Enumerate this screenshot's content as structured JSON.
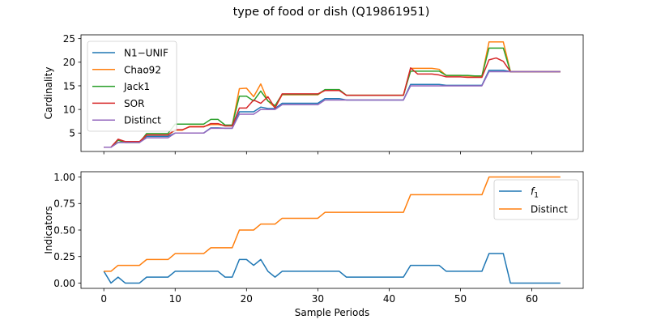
{
  "figure": {
    "title": "type of food or dish (Q19861951)"
  },
  "chart_data": [
    {
      "type": "line",
      "ylabel": "Cardinality",
      "xlabel": "",
      "xlim": [
        -3.2,
        67.2
      ],
      "ylim": [
        1.1,
        25.8
      ],
      "xticks": [
        0,
        10,
        20,
        30,
        40,
        50,
        60
      ],
      "yticks": [
        5,
        10,
        15,
        20,
        25
      ],
      "show_xtick_labels": false,
      "legend_position": "upper-left",
      "x": [
        0,
        1,
        2,
        3,
        4,
        5,
        6,
        7,
        8,
        9,
        10,
        11,
        12,
        13,
        14,
        15,
        16,
        17,
        18,
        19,
        20,
        21,
        22,
        23,
        24,
        25,
        26,
        27,
        28,
        29,
        30,
        31,
        32,
        33,
        34,
        35,
        36,
        37,
        38,
        39,
        40,
        41,
        42,
        43,
        44,
        45,
        46,
        47,
        48,
        49,
        50,
        51,
        52,
        53,
        54,
        55,
        56,
        57,
        58,
        59,
        60,
        61,
        62,
        63,
        64
      ],
      "series": [
        {
          "name": "N1−UNIF",
          "color": "#1f77b4",
          "values": [
            2,
            2,
            3,
            3,
            3,
            3,
            4.3,
            4.3,
            4.3,
            4.3,
            5,
            5,
            5,
            5,
            5,
            6.1,
            6.1,
            6,
            6,
            9.5,
            9.5,
            9.5,
            10.5,
            10.2,
            10.2,
            11.3,
            11.3,
            11.3,
            11.3,
            11.3,
            11.3,
            12.3,
            12.3,
            12.3,
            12,
            12,
            12,
            12,
            12,
            12,
            12,
            12,
            12,
            15.3,
            15.3,
            15.3,
            15.3,
            15.3,
            15.1,
            15.1,
            15.1,
            15.1,
            15.1,
            15.1,
            18.3,
            18.3,
            18.3,
            18,
            18,
            18,
            18,
            18,
            18,
            18,
            18
          ]
        },
        {
          "name": "Chao92",
          "color": "#ff7f0e",
          "values": [
            2,
            2,
            3.5,
            3,
            3,
            3,
            4.6,
            4.6,
            4.6,
            4.6,
            5.6,
            5.6,
            6.4,
            6.4,
            6.4,
            6.8,
            6.8,
            6.6,
            6.6,
            14.4,
            14.5,
            12.7,
            15.4,
            11.8,
            10.4,
            13.1,
            13.1,
            13.1,
            13.1,
            13.1,
            13.1,
            14.1,
            14.1,
            14.1,
            13,
            13,
            13,
            13,
            13,
            13,
            13,
            13,
            13,
            18.7,
            18.7,
            18.7,
            18.7,
            18.5,
            17.2,
            17.2,
            17.2,
            17.1,
            17,
            17,
            24.3,
            24.3,
            24.3,
            18,
            18,
            18,
            18,
            18,
            18,
            18,
            18
          ]
        },
        {
          "name": "Jack1",
          "color": "#2ca02c",
          "values": [
            2,
            2,
            3.5,
            3,
            3,
            3,
            4.9,
            4.9,
            4.9,
            4.9,
            6.9,
            6.9,
            6.9,
            6.9,
            6.9,
            7.9,
            7.9,
            6.7,
            6.7,
            12.8,
            12.8,
            11.8,
            13.9,
            11.8,
            10.8,
            13.2,
            13.2,
            13.2,
            13.2,
            13.2,
            13.2,
            14.2,
            14.2,
            14.2,
            13,
            13,
            13,
            13,
            13,
            13,
            13,
            13,
            13,
            18.1,
            18.1,
            18.1,
            18.1,
            18.1,
            17.2,
            17.2,
            17.2,
            17.2,
            17.1,
            17.1,
            23,
            23,
            23,
            18,
            18,
            18,
            18,
            18,
            18,
            18,
            18
          ]
        },
        {
          "name": "SOR",
          "color": "#d62728",
          "values": [
            2,
            2,
            3.7,
            3.2,
            3.2,
            3.2,
            4.6,
            4.6,
            4.6,
            4.6,
            5.7,
            5.7,
            6.3,
            6.3,
            6.3,
            7,
            7,
            6.5,
            6.5,
            10.3,
            10.3,
            12,
            11.3,
            12.7,
            10.3,
            13.3,
            13.3,
            13.3,
            13.3,
            13.3,
            13.3,
            14,
            14,
            14,
            13,
            13,
            13,
            13,
            13,
            13,
            13,
            13,
            13,
            18.8,
            17.5,
            17.5,
            17.5,
            17.3,
            16.9,
            16.9,
            16.9,
            16.8,
            16.8,
            16.8,
            20.5,
            20.9,
            20.2,
            18,
            18,
            18,
            18,
            18,
            18,
            18,
            18
          ]
        },
        {
          "name": "Distinct",
          "color": "#9467bd",
          "values": [
            2,
            2,
            3,
            3,
            3,
            3,
            4,
            4,
            4,
            4,
            5,
            5,
            5,
            5,
            5,
            6,
            6,
            6,
            6,
            9,
            9,
            9,
            10,
            10,
            10,
            11,
            11,
            11,
            11,
            11,
            11,
            12,
            12,
            12,
            12,
            12,
            12,
            12,
            12,
            12,
            12,
            12,
            12,
            15,
            15,
            15,
            15,
            15,
            15,
            15,
            15,
            15,
            15,
            15,
            18,
            18,
            18,
            18,
            18,
            18,
            18,
            18,
            18,
            18,
            18
          ]
        }
      ]
    },
    {
      "type": "line",
      "ylabel": "Indicators",
      "xlabel": "Sample Periods",
      "xlim": [
        -3.2,
        67.2
      ],
      "ylim": [
        -0.05,
        1.05
      ],
      "xticks": [
        0,
        10,
        20,
        30,
        40,
        50,
        60
      ],
      "yticks": [
        0.0,
        0.25,
        0.5,
        0.75,
        1.0
      ],
      "ytick_labels": [
        "0.00",
        "0.25",
        "0.50",
        "0.75",
        "1.00"
      ],
      "legend_position": "right",
      "x": [
        0,
        1,
        2,
        3,
        4,
        5,
        6,
        7,
        8,
        9,
        10,
        11,
        12,
        13,
        14,
        15,
        16,
        17,
        18,
        19,
        20,
        21,
        22,
        23,
        24,
        25,
        26,
        27,
        28,
        29,
        30,
        31,
        32,
        33,
        34,
        35,
        36,
        37,
        38,
        39,
        40,
        41,
        42,
        43,
        44,
        45,
        46,
        47,
        48,
        49,
        50,
        51,
        52,
        53,
        54,
        55,
        56,
        57,
        58,
        59,
        60,
        61,
        62,
        63,
        64
      ],
      "series": [
        {
          "name": "f1",
          "color": "#1f77b4",
          "values": [
            0.111,
            0,
            0.056,
            0,
            0,
            0,
            0.056,
            0.056,
            0.056,
            0.056,
            0.111,
            0.111,
            0.111,
            0.111,
            0.111,
            0.111,
            0.111,
            0.056,
            0.056,
            0.222,
            0.222,
            0.167,
            0.222,
            0.111,
            0.056,
            0.111,
            0.111,
            0.111,
            0.111,
            0.111,
            0.111,
            0.111,
            0.111,
            0.111,
            0.056,
            0.056,
            0.056,
            0.056,
            0.056,
            0.056,
            0.056,
            0.056,
            0.056,
            0.167,
            0.167,
            0.167,
            0.167,
            0.167,
            0.111,
            0.111,
            0.111,
            0.111,
            0.111,
            0.111,
            0.278,
            0.278,
            0.278,
            0,
            0,
            0,
            0,
            0,
            0,
            0,
            0
          ]
        },
        {
          "name": "Distinct",
          "color": "#ff7f0e",
          "values": [
            0.111,
            0.111,
            0.167,
            0.167,
            0.167,
            0.167,
            0.222,
            0.222,
            0.222,
            0.222,
            0.278,
            0.278,
            0.278,
            0.278,
            0.278,
            0.333,
            0.333,
            0.333,
            0.333,
            0.5,
            0.5,
            0.5,
            0.556,
            0.556,
            0.556,
            0.611,
            0.611,
            0.611,
            0.611,
            0.611,
            0.611,
            0.667,
            0.667,
            0.667,
            0.667,
            0.667,
            0.667,
            0.667,
            0.667,
            0.667,
            0.667,
            0.667,
            0.667,
            0.833,
            0.833,
            0.833,
            0.833,
            0.833,
            0.833,
            0.833,
            0.833,
            0.833,
            0.833,
            0.833,
            1,
            1,
            1,
            1,
            1,
            1,
            1,
            1,
            1,
            1,
            1
          ]
        }
      ]
    }
  ]
}
